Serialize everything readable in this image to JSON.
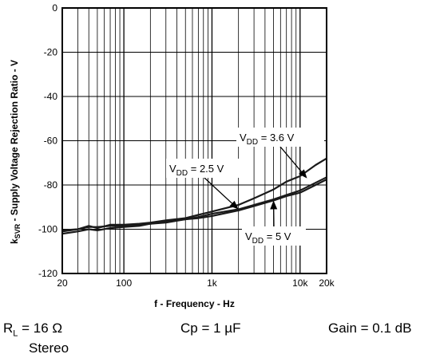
{
  "chart_data": {
    "type": "line",
    "title": "",
    "xlabel": "f - Frequency - Hz",
    "ylabel": {
      "prefix": "k",
      "sub": "SVR",
      "rest": " - Supply Voltage Rejection Ratio - V"
    },
    "xscale": "log",
    "xlim": [
      20,
      20000
    ],
    "ylim": [
      -120,
      0
    ],
    "xticks": [
      {
        "value": 20,
        "label": "20"
      },
      {
        "value": 100,
        "label": "100"
      },
      {
        "value": 1000,
        "label": "1k"
      },
      {
        "value": 10000,
        "label": "10k"
      },
      {
        "value": 20000,
        "label": "20k"
      }
    ],
    "yticks": [
      {
        "value": 0,
        "label": "0"
      },
      {
        "value": -20,
        "label": "-20"
      },
      {
        "value": -40,
        "label": "-40"
      },
      {
        "value": -60,
        "label": "-60"
      },
      {
        "value": -80,
        "label": "-80"
      },
      {
        "value": -100,
        "label": "-100"
      },
      {
        "value": -120,
        "label": "-120"
      }
    ],
    "grid": true,
    "series": [
      {
        "name": "VDD = 3.6 V",
        "x": [
          20,
          30,
          40,
          50,
          70,
          100,
          150,
          200,
          300,
          500,
          700,
          1000,
          2000,
          3000,
          5000,
          7000,
          10000,
          15000,
          20000
        ],
        "y": [
          -101,
          -100,
          -98.5,
          -99.5,
          -98,
          -98,
          -97.5,
          -97,
          -96,
          -95,
          -93.5,
          -92,
          -89,
          -86,
          -82,
          -78.5,
          -76,
          -71,
          -68
        ]
      },
      {
        "name": "VDD = 2.5 V",
        "x": [
          20,
          30,
          40,
          50,
          70,
          100,
          150,
          200,
          300,
          500,
          700,
          1000,
          2000,
          3000,
          5000,
          7000,
          10000,
          15000,
          20000
        ],
        "y": [
          -100.5,
          -100,
          -99,
          -99,
          -98.5,
          -98.5,
          -98,
          -97.5,
          -96.5,
          -95.5,
          -94.5,
          -93,
          -91,
          -89,
          -86.5,
          -84.5,
          -82.5,
          -79,
          -76.5
        ]
      },
      {
        "name": "VDD = 5 V",
        "x": [
          20,
          30,
          40,
          50,
          70,
          100,
          150,
          200,
          300,
          500,
          700,
          1000,
          2000,
          3000,
          5000,
          7000,
          10000,
          15000,
          20000
        ],
        "y": [
          -102,
          -101,
          -100,
          -100.5,
          -99.5,
          -99,
          -98.5,
          -97.5,
          -97,
          -95.5,
          -95,
          -94,
          -91.5,
          -89.5,
          -87,
          -85,
          -83.5,
          -80,
          -77.5
        ]
      }
    ],
    "annotations": [
      {
        "series": 0,
        "prefix": "V",
        "sub": "DD",
        "rest": " = 3.6 V",
        "at_x": 12000,
        "at_y": -77
      },
      {
        "series": 1,
        "prefix": "V",
        "sub": "DD",
        "rest": " = 2.5 V",
        "at_x": 2000,
        "at_y": -91
      },
      {
        "series": 2,
        "prefix": "V",
        "sub": "DD",
        "rest": " = 5 V",
        "at_x": 5000,
        "at_y": -87
      }
    ]
  },
  "conditions": {
    "rl": {
      "prefix": "R",
      "sub": "L",
      "rest": " = 16 Ω"
    },
    "cp": "Cp = 1 µF",
    "gain": "Gain = 0.1 dB",
    "mode": "Stereo"
  }
}
